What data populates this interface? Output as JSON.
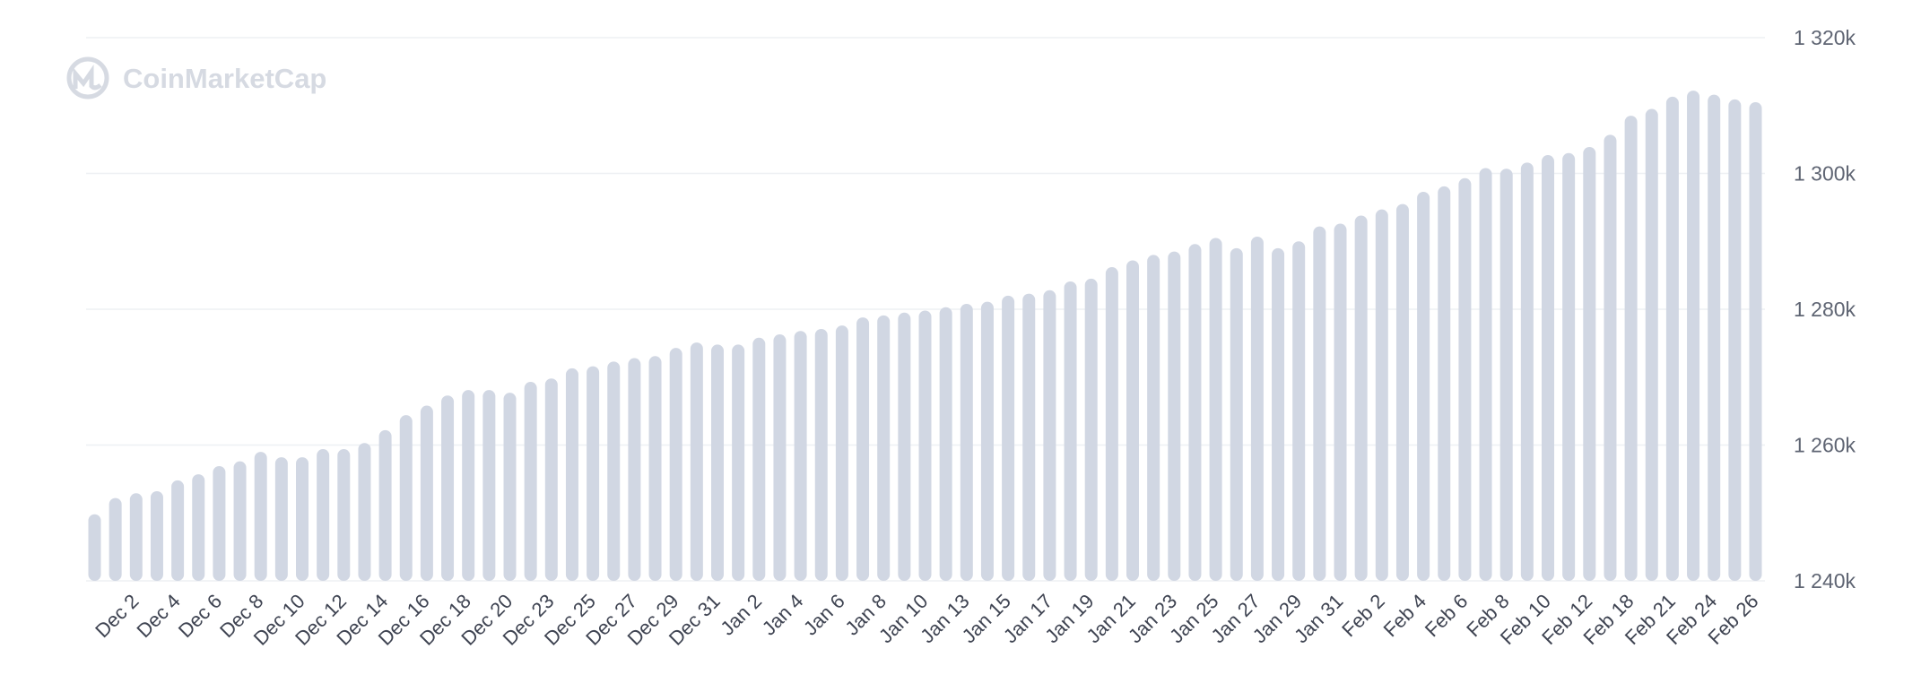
{
  "watermark": {
    "text": "CoinMarketCap",
    "icon": "coinmarketcap-logo-icon"
  },
  "colors": {
    "bar": "#d1d7e3",
    "grid": "#eef0f4",
    "tick_text": "#5f6573",
    "watermark": "#d6dae2"
  },
  "chart_data": {
    "type": "bar",
    "title": "",
    "xlabel": "",
    "ylabel": "",
    "ylim": [
      1240000,
      1320000
    ],
    "grid": true,
    "legend": "none",
    "yticks": [
      1240000,
      1260000,
      1280000,
      1300000,
      1320000
    ],
    "ytick_labels": [
      "1 240k",
      "1 260k",
      "1 280k",
      "1 300k",
      "1 320k"
    ],
    "xtick_labels": [
      "Dec 2",
      "Dec 4",
      "Dec 6",
      "Dec 8",
      "Dec 10",
      "Dec 12",
      "Dec 14",
      "Dec 16",
      "Dec 18",
      "Dec 20",
      "Dec 23",
      "Dec 25",
      "Dec 27",
      "Dec 29",
      "Dec 31",
      "Jan 2",
      "Jan 4",
      "Jan 6",
      "Jan 8",
      "Jan 10",
      "Jan 13",
      "Jan 15",
      "Jan 17",
      "Jan 19",
      "Jan 21",
      "Jan 23",
      "Jan 25",
      "Jan 27",
      "Jan 29",
      "Jan 31",
      "Feb 2",
      "Feb 4",
      "Feb 6",
      "Feb 8",
      "Feb 10",
      "Feb 12",
      "Feb 18",
      "Feb 21",
      "Feb 24",
      "Feb 26"
    ],
    "values": [
      1249800,
      1252200,
      1252900,
      1253200,
      1254800,
      1255700,
      1256900,
      1257600,
      1259000,
      1258200,
      1258200,
      1259400,
      1259400,
      1260300,
      1262200,
      1264400,
      1265800,
      1267300,
      1268100,
      1268100,
      1267700,
      1269300,
      1269800,
      1271300,
      1271600,
      1272300,
      1272800,
      1273100,
      1274300,
      1275100,
      1274800,
      1274800,
      1275800,
      1276300,
      1276800,
      1277100,
      1277600,
      1278800,
      1279100,
      1279500,
      1279800,
      1280300,
      1280800,
      1281100,
      1282000,
      1282300,
      1282800,
      1284100,
      1284500,
      1286200,
      1287200,
      1288000,
      1288500,
      1289600,
      1290500,
      1289000,
      1290700,
      1289000,
      1290000,
      1292200,
      1292600,
      1293800,
      1294700,
      1295500,
      1297300,
      1298100,
      1299300,
      1300800,
      1300700,
      1301600,
      1302700,
      1303000,
      1303900,
      1305700,
      1308500,
      1309500,
      1311300,
      1312200,
      1311600,
      1310900,
      1310500
    ]
  }
}
